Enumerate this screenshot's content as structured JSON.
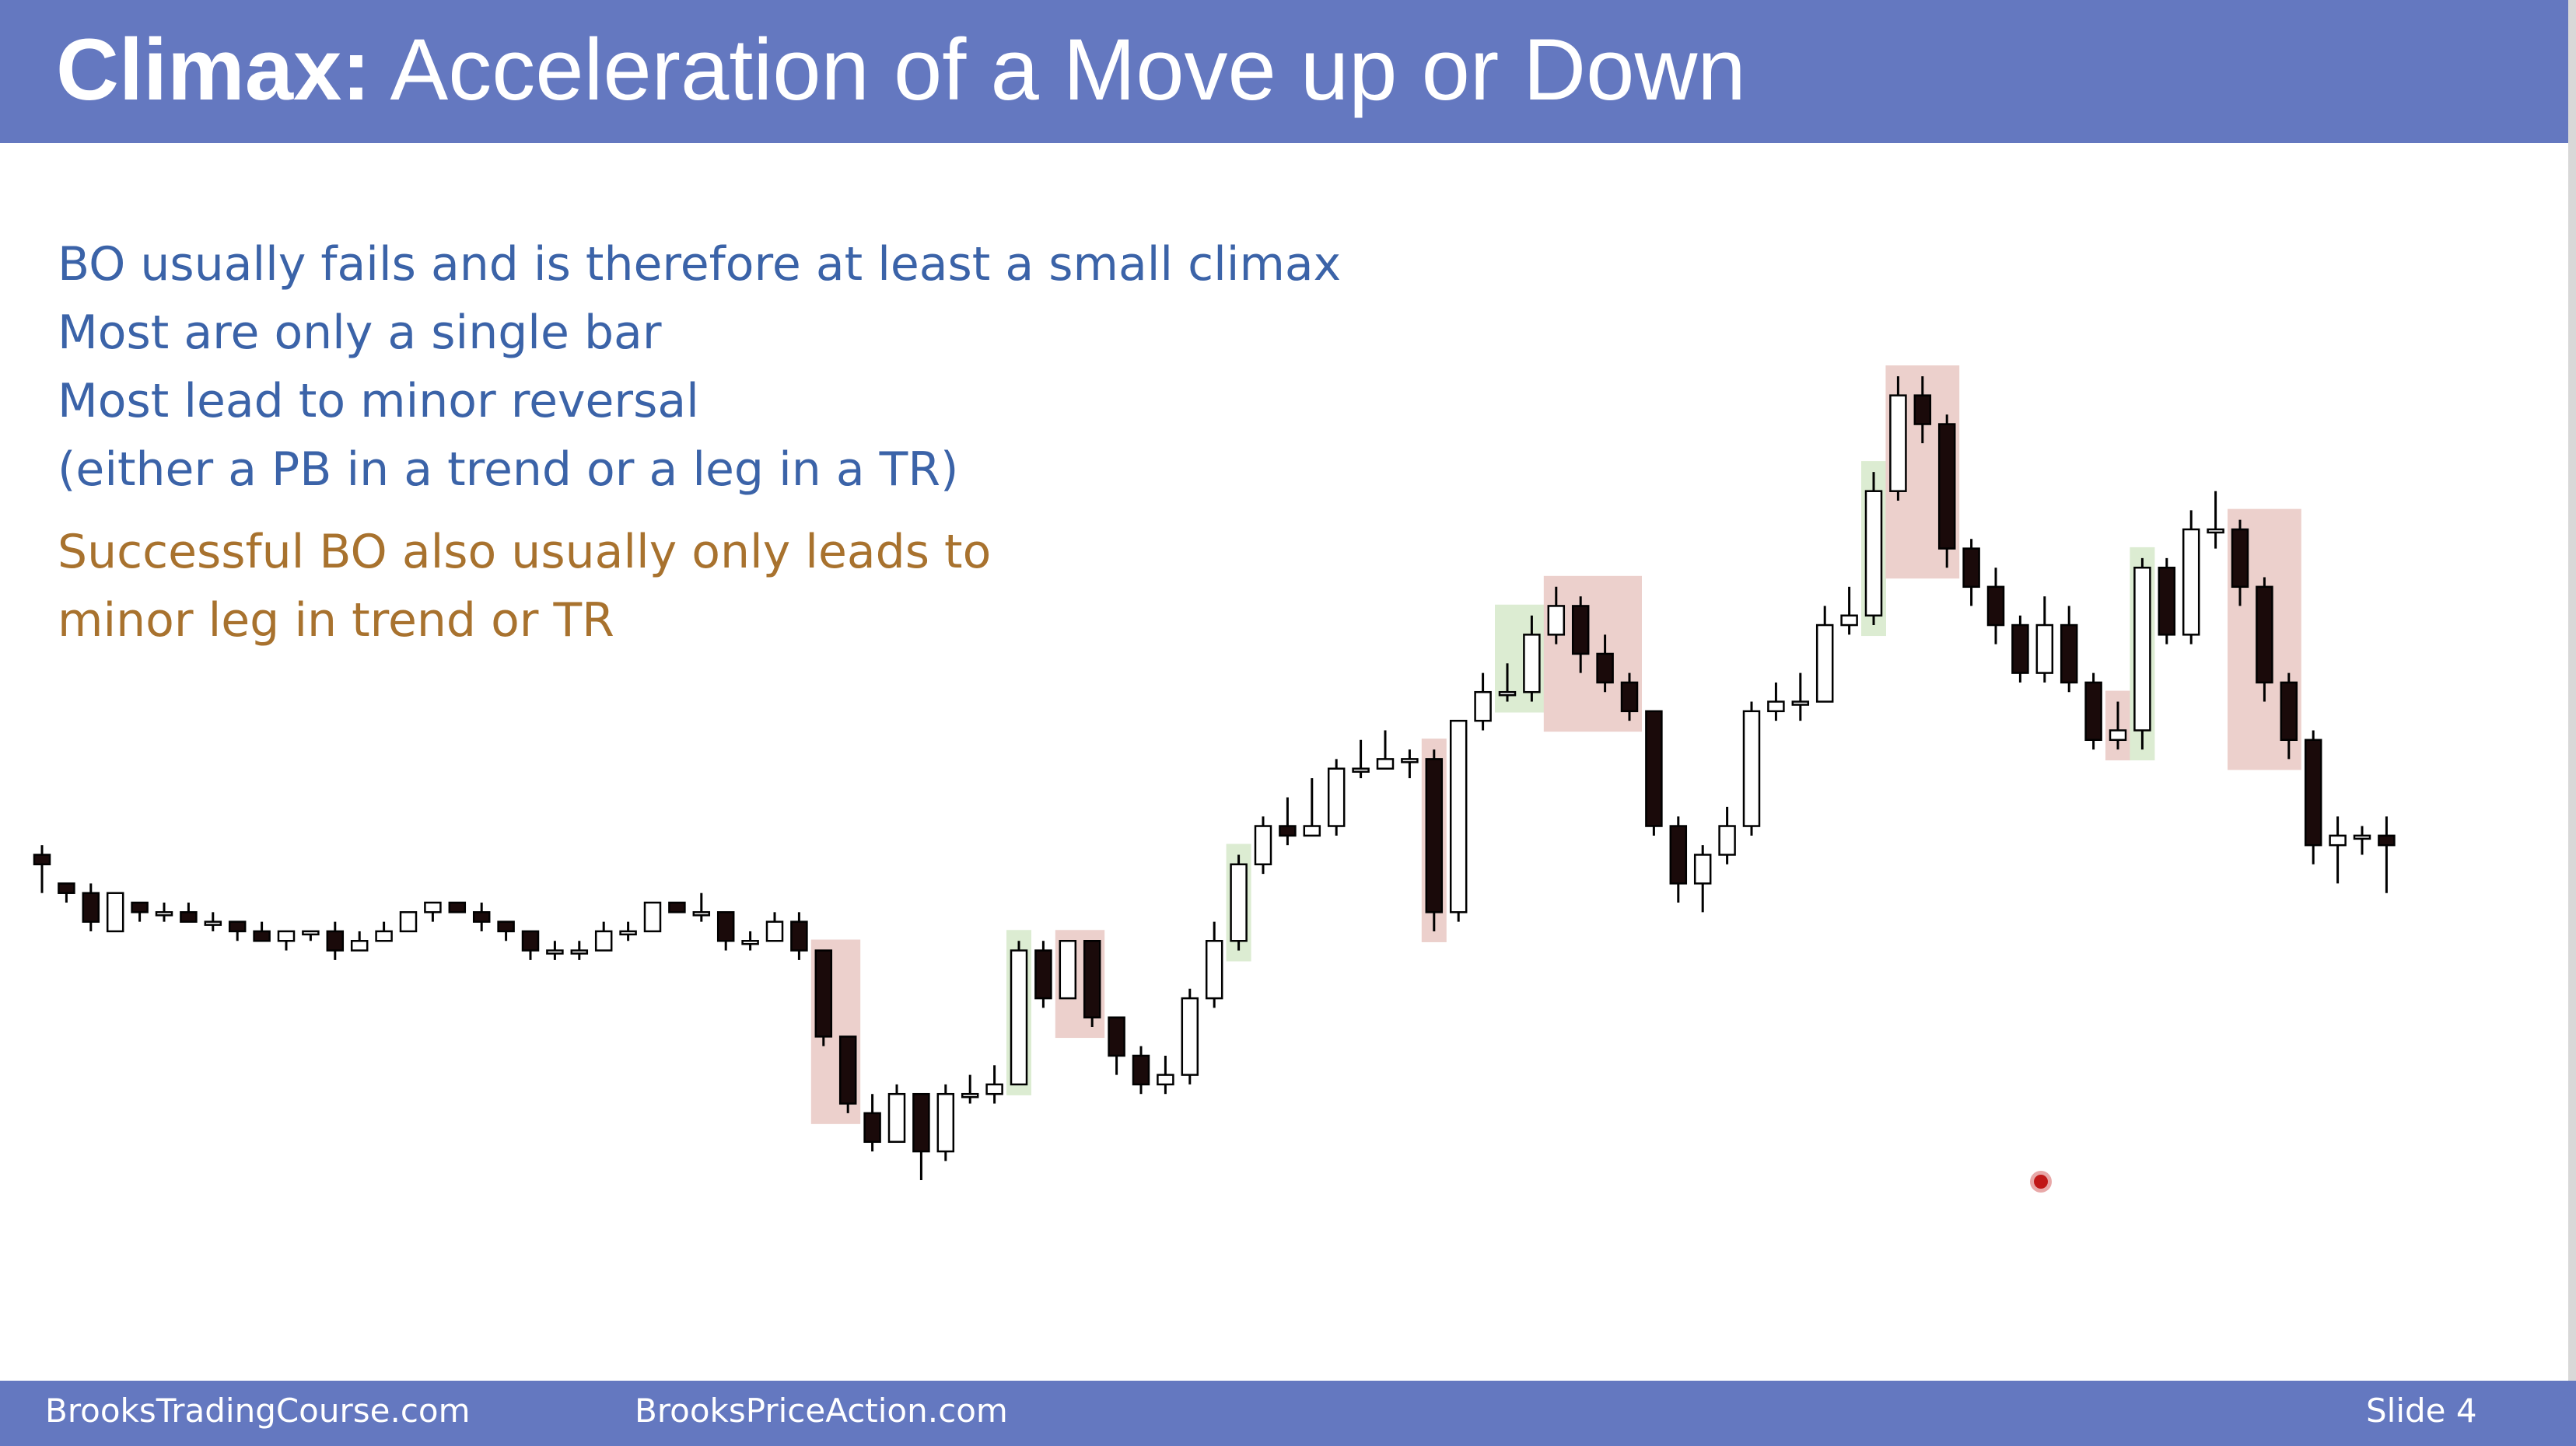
{
  "header": {
    "title_bold": "Climax:",
    "title_rest": " Acceleration of a Move up or Down"
  },
  "bullets": {
    "line1": "BO usually fails and is therefore at least a small climax",
    "line2": "Most are only a single bar",
    "line3": "Most lead to minor reversal",
    "line4": "(either a PB in a trend or a leg in a TR)",
    "line5": "Successful BO also usually only leads to",
    "line6": "minor leg in trend or TR"
  },
  "colors": {
    "banner": "#6478c0",
    "blue_text": "#3b63a8",
    "brown_text": "#a8722e",
    "climax_up": "#dcecd2",
    "climax_down": "#ecd0cc"
  },
  "footer": {
    "site1": "BrooksTradingCourse.com",
    "site2": "BrooksPriceAction.com",
    "slide": "Slide  4"
  },
  "chart_data": {
    "type": "candlestick",
    "bars": [
      [
        0,
        6,
        6,
        0,
        0,
        0
      ],
      [
        0,
        2,
        4,
        0,
        0,
        0
      ],
      [
        0,
        -3,
        4,
        -4,
        0,
        0
      ],
      [
        0,
        5,
        5,
        -5,
        0,
        0
      ],
      [
        0,
        1,
        3,
        -1,
        0,
        0
      ],
      [
        0,
        1,
        1,
        -1,
        0,
        0
      ],
      [
        0,
        1,
        2,
        -1,
        0,
        0
      ],
      [
        0,
        1,
        1,
        -2,
        0,
        0
      ],
      [
        0,
        2,
        3,
        -2,
        0,
        0
      ],
      [
        0,
        1,
        2,
        -3,
        0,
        0
      ],
      [
        0,
        -2,
        3,
        -1,
        0,
        0
      ],
      [
        0,
        1,
        2,
        -2,
        0,
        0
      ],
      [
        0,
        -2,
        4,
        -3,
        0,
        0
      ],
      [
        0,
        1,
        2,
        -2,
        0,
        0
      ],
      [
        0,
        3,
        5,
        -1,
        0,
        0
      ],
      [
        0,
        2,
        2,
        -3,
        0,
        0
      ],
      [
        0,
        2,
        3,
        -2,
        0,
        0
      ],
      [
        0,
        1,
        2,
        -2,
        0,
        0
      ],
      [
        0,
        2,
        3,
        -1,
        0,
        0
      ],
      [
        0,
        1,
        3,
        -1,
        0,
        0
      ],
      [
        0,
        4,
        5,
        -2,
        0,
        0
      ],
      [
        0,
        3,
        3,
        -4,
        0,
        0
      ],
      [
        0,
        1,
        1,
        -2,
        0,
        0
      ],
      [
        0,
        5,
        5,
        -1,
        0,
        0
      ],
      [
        0,
        2,
        3,
        -1,
        0,
        0
      ],
      [
        0,
        1,
        2,
        0,
        0,
        0
      ],
      [
        0,
        5,
        6,
        -1,
        0,
        0
      ],
      [
        0,
        3,
        4,
        -1,
        0,
        0
      ],
      [
        0,
        1,
        4,
        -3,
        0,
        0
      ],
      [
        0,
        1,
        3,
        -1,
        0,
        0
      ],
      [
        0,
        5,
        5,
        -2,
        0,
        0
      ],
      [
        0,
        1,
        4,
        -2,
        0,
        0
      ],
      [
        0,
        2,
        3,
        -1,
        0,
        0
      ],
      [
        0,
        2,
        3,
        -1,
        0,
        0
      ],
      [
        0,
        7,
        8,
        -2,
        0,
        0
      ],
      [
        0,
        4,
        4,
        -4,
        0,
        0
      ],
      [
        0,
        1,
        2,
        -3,
        0,
        0
      ],
      [
        0,
        1,
        2,
        -2,
        0,
        0
      ],
      [
        0,
        3,
        4,
        -1,
        0,
        0
      ],
      [
        0,
        2,
        3,
        0,
        0,
        0
      ],
      [
        0,
        -1,
        2,
        -2,
        0,
        0
      ],
      [
        0,
        -1,
        2,
        -1,
        0,
        0
      ],
      [
        0,
        -1,
        2,
        -1,
        0,
        0
      ],
      [
        0,
        -1,
        2,
        -1,
        0,
        0
      ],
      [
        0,
        5,
        6,
        -1,
        0,
        0
      ],
      [
        0,
        1,
        6,
        -3,
        0,
        0
      ],
      [
        0,
        -12,
        8,
        -1,
        0,
        0
      ]
    ],
    "note": "OHLC values read approximately from the candlestick price chart; decorative reconstruction",
    "series_ohlc": [
      [
        2260,
        2259,
        2261,
        2256
      ],
      [
        2257,
        2256,
        2257,
        2255
      ],
      [
        2256,
        2253,
        2257,
        2252
      ],
      [
        2252,
        2256,
        2256,
        2252
      ],
      [
        2255,
        2254,
        2255,
        2253
      ],
      [
        2254,
        2254,
        2255,
        2253
      ],
      [
        2254,
        2253,
        2255,
        2253
      ],
      [
        2253,
        2253,
        2254,
        2252
      ],
      [
        2253,
        2252,
        2253,
        2251
      ],
      [
        2252,
        2251,
        2253,
        2251
      ],
      [
        2251,
        2252,
        2252,
        2250
      ],
      [
        2252,
        2252,
        2252,
        2251
      ],
      [
        2252,
        2250,
        2253,
        2249
      ],
      [
        2250,
        2251,
        2252,
        2250
      ],
      [
        2251,
        2252,
        2253,
        2251
      ],
      [
        2252,
        2254,
        2254,
        2252
      ],
      [
        2254,
        2255,
        2255,
        2253
      ],
      [
        2255,
        2254,
        2255,
        2254
      ],
      [
        2254,
        2253,
        2255,
        2252
      ],
      [
        2253,
        2252,
        2253,
        2251
      ],
      [
        2252,
        2250,
        2252,
        2249
      ],
      [
        2250,
        2250,
        2251,
        2249
      ],
      [
        2250,
        2250,
        2251,
        2249
      ],
      [
        2250,
        2252,
        2253,
        2250
      ],
      [
        2252,
        2252,
        2253,
        2251
      ],
      [
        2252,
        2255,
        2255,
        2252
      ],
      [
        2255,
        2254,
        2255,
        2254
      ],
      [
        2254,
        2254,
        2256,
        2253
      ],
      [
        2254,
        2251,
        2254,
        2250
      ],
      [
        2251,
        2251,
        2252,
        2250
      ],
      [
        2251,
        2253,
        2254,
        2251
      ],
      [
        2253,
        2250,
        2254,
        2249
      ],
      [
        2250,
        2241,
        2250,
        2240
      ],
      [
        2241,
        2234,
        2241,
        2233
      ],
      [
        2233,
        2230,
        2235,
        2229
      ],
      [
        2230,
        2235,
        2236,
        2230
      ],
      [
        2235,
        2229,
        2235,
        2226
      ],
      [
        2229,
        2235,
        2236,
        2228
      ],
      [
        2235,
        2235,
        2237,
        2234
      ],
      [
        2235,
        2236,
        2238,
        2234
      ],
      [
        2236,
        2250,
        2251,
        2236
      ],
      [
        2250,
        2245,
        2251,
        2244
      ],
      [
        2245,
        2251,
        2251,
        2245
      ],
      [
        2251,
        2243,
        2251,
        2242
      ],
      [
        2243,
        2239,
        2243,
        2237
      ],
      [
        2239,
        2236,
        2240,
        2235
      ],
      [
        2236,
        2237,
        2239,
        2235
      ],
      [
        2237,
        2245,
        2246,
        2236
      ],
      [
        2245,
        2251,
        2253,
        2244
      ],
      [
        2251,
        2259,
        2260,
        2250
      ],
      [
        2259,
        2263,
        2264,
        2258
      ],
      [
        2263,
        2262,
        2266,
        2261
      ],
      [
        2262,
        2263,
        2268,
        2262
      ],
      [
        2263,
        2269,
        2270,
        2262
      ],
      [
        2269,
        2269,
        2272,
        2268
      ],
      [
        2269,
        2270,
        2273,
        2269
      ],
      [
        2270,
        2270,
        2271,
        2268
      ],
      [
        2270,
        2254,
        2271,
        2252
      ],
      [
        2254,
        2274,
        2274,
        2253
      ],
      [
        2274,
        2277,
        2279,
        2273
      ],
      [
        2277,
        2277,
        2280,
        2276
      ],
      [
        2277,
        2283,
        2285,
        2276
      ],
      [
        2283,
        2286,
        2288,
        2282
      ],
      [
        2286,
        2281,
        2287,
        2279
      ],
      [
        2281,
        2278,
        2283,
        2277
      ],
      [
        2278,
        2275,
        2279,
        2274
      ],
      [
        2275,
        2263,
        2275,
        2262
      ],
      [
        2263,
        2257,
        2264,
        2255
      ],
      [
        2257,
        2260,
        2261,
        2254
      ],
      [
        2260,
        2263,
        2265,
        2259
      ],
      [
        2263,
        2275,
        2276,
        2262
      ],
      [
        2275,
        2276,
        2278,
        2274
      ],
      [
        2276,
        2276,
        2279,
        2274
      ],
      [
        2276,
        2284,
        2286,
        2276
      ],
      [
        2284,
        2285,
        2288,
        2283
      ],
      [
        2285,
        2298,
        2300,
        2284
      ],
      [
        2298,
        2308,
        2310,
        2297
      ],
      [
        2308,
        2305,
        2310,
        2303
      ],
      [
        2305,
        2292,
        2306,
        2290
      ],
      [
        2292,
        2288,
        2293,
        2286
      ],
      [
        2288,
        2284,
        2290,
        2282
      ],
      [
        2284,
        2279,
        2285,
        2278
      ],
      [
        2279,
        2284,
        2287,
        2278
      ],
      [
        2284,
        2278,
        2286,
        2277
      ],
      [
        2278,
        2272,
        2279,
        2271
      ],
      [
        2272,
        2273,
        2276,
        2271
      ],
      [
        2273,
        2290,
        2291,
        2271
      ],
      [
        2290,
        2283,
        2291,
        2282
      ],
      [
        2283,
        2294,
        2296,
        2282
      ],
      [
        2294,
        2294,
        2298,
        2292
      ],
      [
        2294,
        2288,
        2295,
        2286
      ],
      [
        2288,
        2278,
        2289,
        2276
      ],
      [
        2278,
        2272,
        2279,
        2270
      ],
      [
        2272,
        2261,
        2273,
        2259
      ],
      [
        2261,
        2262,
        2264,
        2257
      ],
      [
        2262,
        2262,
        2263,
        2260
      ],
      [
        2262,
        2261,
        2264,
        2256
      ]
    ]
  }
}
